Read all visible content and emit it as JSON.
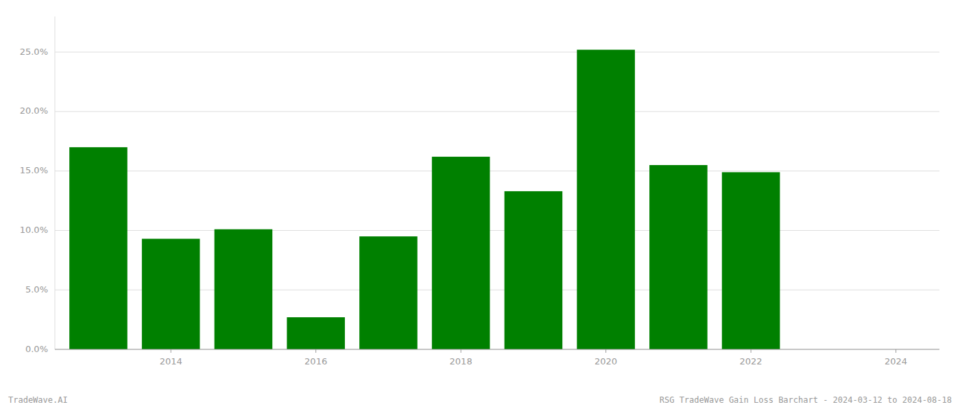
{
  "chart_data": {
    "type": "bar",
    "x": [
      2013,
      2014,
      2015,
      2016,
      2017,
      2018,
      2019,
      2020,
      2021,
      2022
    ],
    "values": [
      0.17,
      0.093,
      0.101,
      0.027,
      0.095,
      0.162,
      0.133,
      0.252,
      0.155,
      0.149
    ],
    "color": "#008000",
    "xlim": [
      2012.4,
      2024.6
    ],
    "xticks": [
      2014,
      2016,
      2018,
      2020,
      2022,
      2024
    ],
    "ylim": [
      0,
      0.28
    ],
    "yticks": [
      {
        "value": 0.0,
        "label": "0.0%"
      },
      {
        "value": 0.05,
        "label": "5.0%"
      },
      {
        "value": 0.1,
        "label": "10.0%"
      },
      {
        "value": 0.15,
        "label": "15.0%"
      },
      {
        "value": 0.2,
        "label": "20.0%"
      },
      {
        "value": 0.25,
        "label": "25.0%"
      }
    ],
    "grid": true,
    "annotations": [
      "TradeWave.AI",
      "RSG TradeWave Gain Loss Barchart - 2024-03-12 to 2024-08-18"
    ]
  }
}
